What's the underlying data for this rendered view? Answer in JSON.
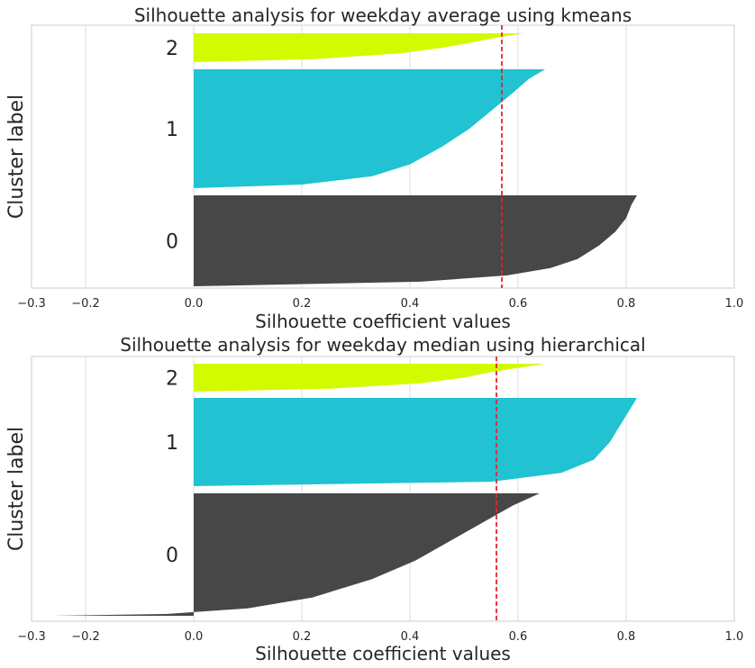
{
  "chart_data": [
    {
      "type": "area",
      "subtype": "silhouette",
      "title": "Silhouette analysis for weekday average using kmeans",
      "xlabel": "Silhouette coefficient values",
      "ylabel": "Cluster label",
      "xlim": [
        -0.3,
        1.0
      ],
      "xticks": [
        -0.3,
        -0.2,
        0.0,
        0.2,
        0.4,
        0.6,
        0.8,
        1.0
      ],
      "xtick_labels": [
        "−0.3",
        "−0.2",
        "0.0",
        "0.2",
        "0.4",
        "0.6",
        "0.8",
        "1.0"
      ],
      "grid": true,
      "average_silhouette": 0.57,
      "average_line_color": "#e8232b",
      "clusters": [
        {
          "label": "0",
          "color": "#474747",
          "size": 0.36,
          "profile": [
            [
              0,
              0.0
            ],
            [
              0.05,
              0.42
            ],
            [
              0.12,
              0.58
            ],
            [
              0.2,
              0.66
            ],
            [
              0.3,
              0.71
            ],
            [
              0.45,
              0.75
            ],
            [
              0.6,
              0.78
            ],
            [
              0.75,
              0.8
            ],
            [
              0.9,
              0.81
            ],
            [
              1,
              0.82
            ]
          ]
        },
        {
          "label": "1",
          "color": "#21c2d2",
          "size": 0.47,
          "profile": [
            [
              0,
              0.0
            ],
            [
              0.03,
              0.2
            ],
            [
              0.1,
              0.33
            ],
            [
              0.2,
              0.4
            ],
            [
              0.35,
              0.46
            ],
            [
              0.5,
              0.51
            ],
            [
              0.65,
              0.55
            ],
            [
              0.8,
              0.59
            ],
            [
              0.92,
              0.62
            ],
            [
              1,
              0.65
            ]
          ]
        },
        {
          "label": "2",
          "color": "#d3fb00",
          "size": 0.1,
          "profile": [
            [
              0,
              0.0
            ],
            [
              0.1,
              0.22
            ],
            [
              0.3,
              0.38
            ],
            [
              0.5,
              0.46
            ],
            [
              0.7,
              0.52
            ],
            [
              0.85,
              0.56
            ],
            [
              1,
              0.61
            ]
          ]
        }
      ]
    },
    {
      "type": "area",
      "subtype": "silhouette",
      "title": "Silhouette analysis for weekday median using hierarchical",
      "xlabel": "Silhouette coefficient values",
      "ylabel": "Cluster label",
      "xlim": [
        -0.3,
        1.0
      ],
      "xticks": [
        -0.3,
        -0.2,
        0.0,
        0.2,
        0.4,
        0.6,
        0.8,
        1.0
      ],
      "xtick_labels": [
        "−0.3",
        "−0.2",
        "0.0",
        "0.2",
        "0.4",
        "0.6",
        "0.8",
        "1.0"
      ],
      "grid": true,
      "average_silhouette": 0.56,
      "average_line_color": "#e8232b",
      "clusters": [
        {
          "label": "0",
          "color": "#474747",
          "size": 0.48,
          "profile": [
            [
              0,
              -0.26
            ],
            [
              0.015,
              -0.05
            ],
            [
              0.03,
              0.0
            ],
            [
              0.06,
              0.1
            ],
            [
              0.15,
              0.22
            ],
            [
              0.3,
              0.33
            ],
            [
              0.45,
              0.41
            ],
            [
              0.6,
              0.47
            ],
            [
              0.75,
              0.53
            ],
            [
              0.9,
              0.59
            ],
            [
              1,
              0.64
            ]
          ]
        },
        {
          "label": "1",
          "color": "#21c2d2",
          "size": 0.34,
          "profile": [
            [
              0,
              0.0
            ],
            [
              0.05,
              0.55
            ],
            [
              0.15,
              0.68
            ],
            [
              0.3,
              0.74
            ],
            [
              0.5,
              0.77
            ],
            [
              0.7,
              0.79
            ],
            [
              0.9,
              0.81
            ],
            [
              1,
              0.82
            ]
          ]
        },
        {
          "label": "2",
          "color": "#d3fb00",
          "size": 0.1,
          "profile": [
            [
              0,
              0.0
            ],
            [
              0.1,
              0.25
            ],
            [
              0.3,
              0.42
            ],
            [
              0.5,
              0.5
            ],
            [
              0.7,
              0.55
            ],
            [
              0.85,
              0.6
            ],
            [
              1,
              0.65
            ]
          ]
        }
      ]
    }
  ]
}
